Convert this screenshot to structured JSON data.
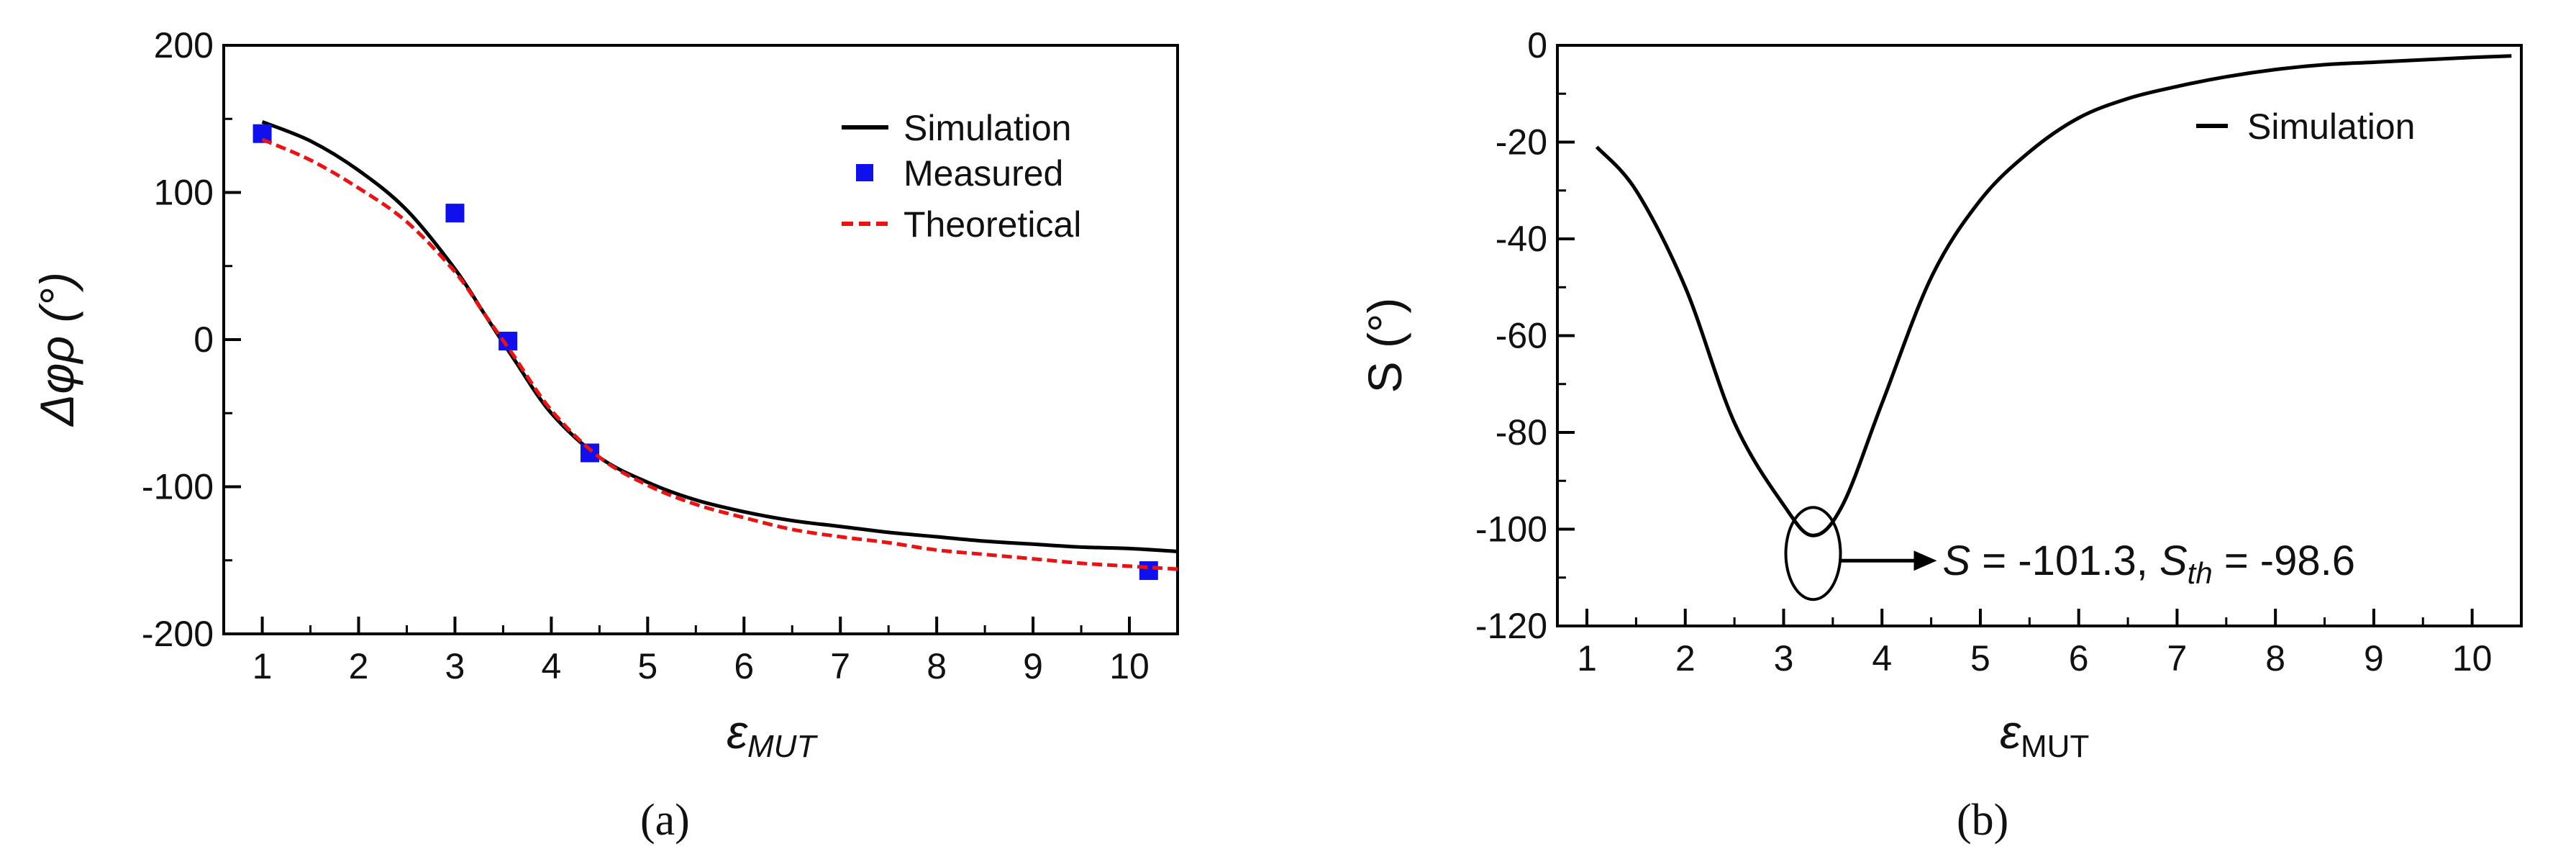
{
  "chart_data": [
    {
      "panel": "(a)",
      "panel_label": "(a)",
      "type": "line",
      "xlabel": "ε",
      "xlabel_sub": "MUT",
      "ylabel": "Δφρ (°)",
      "xlim": [
        0.6,
        10.5
      ],
      "ylim": [
        -200,
        200
      ],
      "xticks": [
        "1",
        "2",
        "3",
        "4",
        "5",
        "6",
        "7",
        "8",
        "9",
        "10"
      ],
      "yticks": [
        "-200",
        "-100",
        "0",
        "100",
        "200"
      ],
      "legend": [
        "Simulation",
        "Measured",
        "Theoretical"
      ],
      "series": [
        {
          "name": "Simulation",
          "style": "solid",
          "color": "#000000",
          "x": [
            1.0,
            1.5,
            2.0,
            2.5,
            3.0,
            3.3,
            3.6,
            4.0,
            4.5,
            5.0,
            5.5,
            6.0,
            6.5,
            7.0,
            7.5,
            8.0,
            8.5,
            9.0,
            9.5,
            10.0,
            10.5
          ],
          "y": [
            148,
            135,
            115,
            88,
            48,
            18,
            -12,
            -50,
            -80,
            -97,
            -109,
            -117,
            -123,
            -127,
            -131,
            -134,
            -137,
            -139,
            -141,
            -142,
            -144
          ]
        },
        {
          "name": "Measured",
          "style": "marker",
          "color": "#1010ee",
          "x": [
            1.0,
            3.0,
            3.55,
            4.4,
            10.2
          ],
          "y": [
            140,
            86,
            -1,
            -77,
            -157
          ]
        },
        {
          "name": "Theoretical",
          "style": "dashed",
          "color": "#ee1111",
          "x": [
            1.0,
            1.5,
            2.0,
            2.5,
            3.0,
            3.3,
            3.6,
            4.0,
            4.5,
            5.0,
            5.5,
            6.0,
            6.5,
            7.0,
            7.5,
            8.0,
            8.5,
            9.0,
            9.5,
            10.0,
            10.5
          ],
          "y": [
            136,
            122,
            103,
            80,
            46,
            18,
            -10,
            -48,
            -80,
            -99,
            -112,
            -121,
            -129,
            -134,
            -138,
            -143,
            -146,
            -149,
            -152,
            -154,
            -156
          ]
        }
      ]
    },
    {
      "panel": "(b)",
      "panel_label": "(b)",
      "type": "line",
      "xlabel": "ε",
      "xlabel_sub": "MUT",
      "ylabel": "S (°)",
      "xlim": [
        0.7,
        10.5
      ],
      "ylim": [
        -120,
        0
      ],
      "xticks": [
        "1",
        "2",
        "3",
        "4",
        "5",
        "6",
        "7",
        "8",
        "9",
        "10"
      ],
      "yticks": [
        "-120",
        "-100",
        "-80",
        "-60",
        "-40",
        "-20",
        "0"
      ],
      "legend": [
        "Simulation"
      ],
      "series": [
        {
          "name": "Simulation",
          "style": "solid",
          "color": "#000000",
          "x": [
            1.1,
            1.5,
            2.0,
            2.5,
            3.0,
            3.3,
            3.6,
            4.0,
            4.5,
            5.0,
            5.5,
            6.0,
            6.5,
            7.0,
            7.5,
            8.0,
            8.5,
            9.0,
            9.5,
            10.0,
            10.4
          ],
          "y": [
            -21,
            -30,
            -50,
            -78,
            -95,
            -101.3,
            -95,
            -74,
            -48,
            -32,
            -22,
            -15,
            -11,
            -8.5,
            -6.5,
            -5,
            -4,
            -3.5,
            -3,
            -2.5,
            -2.2
          ]
        }
      ],
      "annotation": {
        "at_x": 3.3,
        "at_y": -101.3,
        "S_label": "S",
        "S_text": " = -101.3, ",
        "Sth_label": "S",
        "Sth_sub": "th",
        "Sth_text": " = -98.6"
      }
    }
  ]
}
